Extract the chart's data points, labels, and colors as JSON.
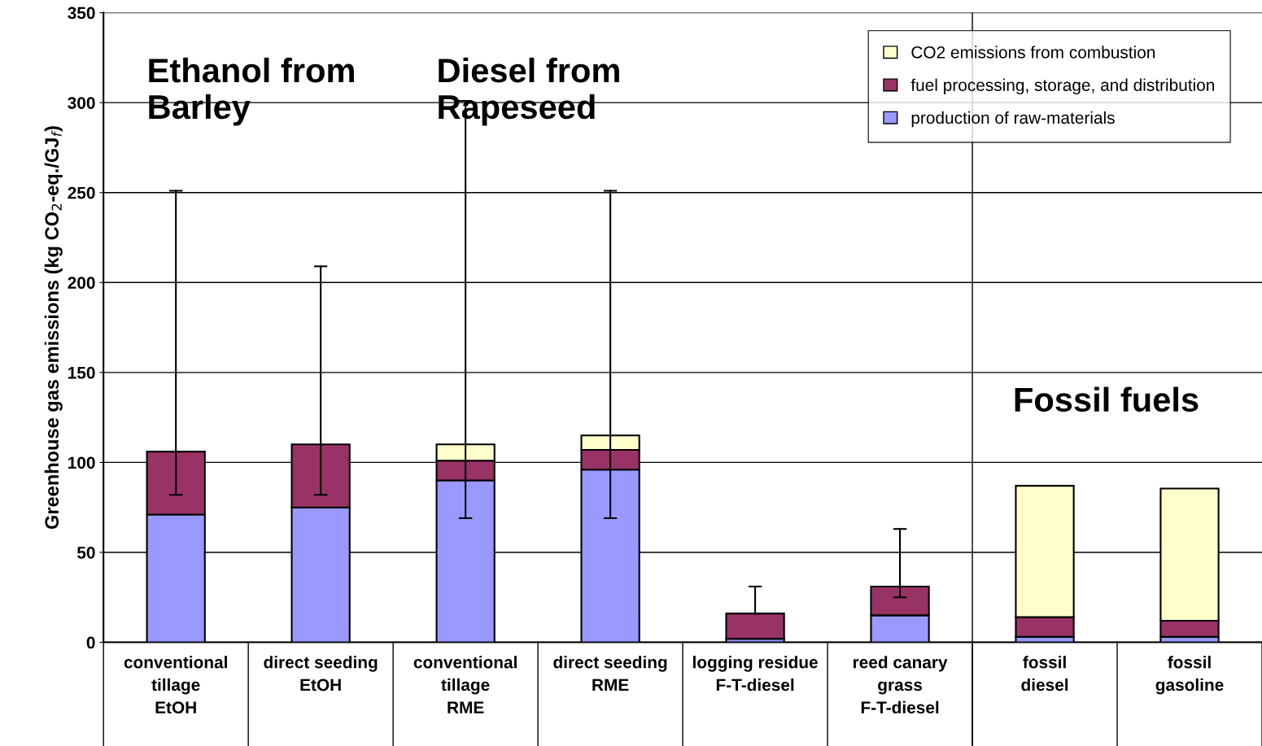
{
  "chart_data": {
    "type": "bar",
    "stacked": true,
    "ylabel": "Greenhouse gas emissions (kg CO$_{2}$-eq./GJ$_{f}$)",
    "categories": [
      "conventional\ntillage\nEtOH",
      "direct seeding\nEtOH",
      "conventional\ntillage\nRME",
      "direct seeding\nRME",
      "logging residue\nF-T-diesel",
      "reed canary\ngrass\nF-T-diesel",
      "fossil\ndiesel",
      "fossil\ngasoline"
    ],
    "series": [
      {
        "name": "production of raw-materials",
        "color": "#9999ff",
        "values": [
          71,
          75,
          90,
          96,
          2,
          15,
          3,
          3
        ]
      },
      {
        "name": "fuel processing, storage, and distribution",
        "color": "#993366",
        "values": [
          35,
          35,
          11,
          11,
          14,
          16,
          11,
          9
        ]
      },
      {
        "name": "CO2 emissions from combustion",
        "color": "#ffffcc",
        "values": [
          0,
          0,
          9,
          8,
          0,
          0,
          73,
          73.5
        ],
        "errors": [
          [
            82,
            251
          ],
          [
            82,
            209
          ],
          [
            69,
            301
          ],
          [
            69,
            251
          ],
          [
            16,
            31
          ],
          [
            25,
            63
          ],
          null,
          null
        ]
      }
    ],
    "ylim": [
      0,
      350
    ],
    "yticks": [
      0,
      50,
      100,
      150,
      200,
      250,
      300,
      350
    ],
    "grid": "y",
    "legend": "top right",
    "annotations": [
      "Ethanol from\nBarley",
      "Diesel from\nRapeseed",
      "Fossil fuels"
    ]
  }
}
